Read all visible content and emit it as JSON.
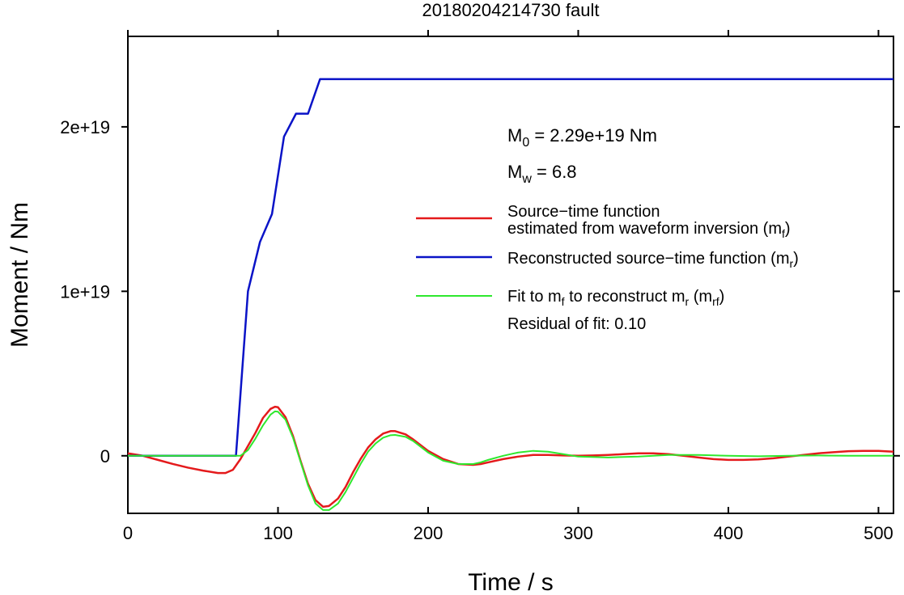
{
  "chart_data": {
    "type": "line",
    "title": "20180204214730 fault",
    "xlabel": "Time / s",
    "ylabel": "Moment / Nm",
    "xlim": [
      0,
      510
    ],
    "ylim": [
      -3.5e+18,
      2.55e+19
    ],
    "xticks": [
      0,
      100,
      200,
      300,
      400,
      500
    ],
    "xtick_labels": [
      "0",
      "100",
      "200",
      "300",
      "400",
      "500"
    ],
    "yticks": [
      0,
      1e+19,
      2e+19
    ],
    "ytick_labels": [
      "0",
      "1e+19",
      "2e+19"
    ],
    "grid": false,
    "legend_position": "right",
    "annotations": {
      "m0": {
        "main": "M",
        "sub": "0",
        "rest": " = 2.29e+19 Nm"
      },
      "mw": {
        "main": "M",
        "sub": "w",
        "rest": " = 6.8"
      },
      "residual": "Residual of fit: 0.10"
    },
    "series": [
      {
        "name": "Source−time function estimated from waveform inversion (mf)",
        "legend_line1": "Source−time function",
        "legend_line2_main": "estimated from waveform inversion (m",
        "legend_line2_sub": "f",
        "legend_line2_end": ")",
        "color": "#e41a1c",
        "x": [
          0,
          10,
          20,
          30,
          40,
          50,
          60,
          65,
          70,
          75,
          80,
          85,
          90,
          95,
          98,
          100,
          105,
          110,
          115,
          120,
          125,
          130,
          134,
          140,
          145,
          150,
          155,
          160,
          165,
          170,
          175,
          178,
          185,
          190,
          195,
          200,
          210,
          220,
          230,
          235,
          240,
          250,
          260,
          270,
          280,
          290,
          300,
          310,
          320,
          330,
          340,
          350,
          360,
          370,
          380,
          390,
          400,
          410,
          420,
          430,
          440,
          450,
          460,
          470,
          480,
          490,
          500,
          510
        ],
        "y": [
          1.5e+17,
          0.0,
          -2.5e+17,
          -5e+17,
          -7.2e+17,
          -9e+17,
          -1.05e+18,
          -1.05e+18,
          -8.5e+17,
          -2e+17,
          6e+17,
          1.4e+18,
          2.3e+18,
          2.85e+18,
          2.98e+18,
          2.95e+18,
          2.35e+18,
          1.2e+18,
          -3e+17,
          -1.7e+18,
          -2.7e+18,
          -3.1e+18,
          -3.05e+18,
          -2.6e+18,
          -1.9e+18,
          -1e+18,
          -2e+17,
          5e+17,
          1e+18,
          1.35e+18,
          1.5e+18,
          1.5e+18,
          1.3e+18,
          1e+18,
          6.5e+17,
          3e+17,
          -2e+17,
          -5e+17,
          -5.5e+17,
          -5e+17,
          -4e+17,
          -2e+17,
          -5e+16,
          5e+16,
          5e+16,
          2e+16,
          0.0,
          2e+16,
          5e+16,
          1e+17,
          1.5e+17,
          1.5e+17,
          1e+17,
          0.0,
          -1e+17,
          -2e+17,
          -2.5e+17,
          -2.5e+17,
          -2.2e+17,
          -1.5e+17,
          -5e+16,
          5e+16,
          1.5e+17,
          2.2e+17,
          2.8e+17,
          3e+17,
          3e+17,
          2.5e+17
        ]
      },
      {
        "name": "Reconstructed source−time function (mr)",
        "legend_line1_main": "Reconstructed source−time function (m",
        "legend_line1_sub": "r",
        "legend_line1_end": ")",
        "color": "#0a13c7",
        "x": [
          0,
          72,
          80,
          88,
          96,
          104,
          112,
          120,
          128,
          510
        ],
        "y": [
          0,
          0,
          1e+19,
          1.3e+19,
          1.47e+19,
          1.94e+19,
          2.08e+19,
          2.08e+19,
          2.29e+19,
          2.29e+19
        ]
      },
      {
        "name": "Fit to mf to reconstruct mr (mrf)",
        "legend_a": "Fit to m",
        "legend_a_sub": "f",
        "legend_b": " to reconstruct m",
        "legend_b_sub": "r",
        "legend_c": " (m",
        "legend_c_sub": "rf",
        "legend_d": ")",
        "color": "#2ee82e",
        "x": [
          0,
          60,
          70,
          75,
          80,
          85,
          90,
          95,
          98,
          100,
          105,
          110,
          115,
          120,
          125,
          130,
          134,
          140,
          145,
          150,
          155,
          160,
          165,
          170,
          175,
          178,
          185,
          190,
          195,
          200,
          210,
          220,
          230,
          235,
          240,
          250,
          260,
          270,
          280,
          290,
          300,
          320,
          340,
          360,
          380,
          400,
          420,
          440,
          460,
          480,
          500,
          510
        ],
        "y": [
          0,
          0,
          0,
          0,
          3.5e+17,
          1.05e+18,
          1.85e+18,
          2.5e+18,
          2.7e+18,
          2.68e+18,
          2.2e+18,
          1.1e+18,
          -3.5e+17,
          -1.8e+18,
          -2.9e+18,
          -3.3e+18,
          -3.3e+18,
          -2.9e+18,
          -2.2e+18,
          -1.35e+18,
          -5e+17,
          2.5e+17,
          7.5e+17,
          1.1e+18,
          1.25e+18,
          1.27e+18,
          1.15e+18,
          9e+17,
          5.5e+17,
          2e+17,
          -3e+17,
          -5e+17,
          -5e+17,
          -4e+17,
          -2.5e+17,
          0.0,
          2e+17,
          3e+17,
          2.5e+17,
          1e+17,
          -5e+16,
          -1e+17,
          -5e+16,
          5e+16,
          5e+16,
          0.0,
          -3e+16,
          0.0,
          2e+16,
          0.0,
          0.0,
          0.0
        ]
      }
    ]
  }
}
